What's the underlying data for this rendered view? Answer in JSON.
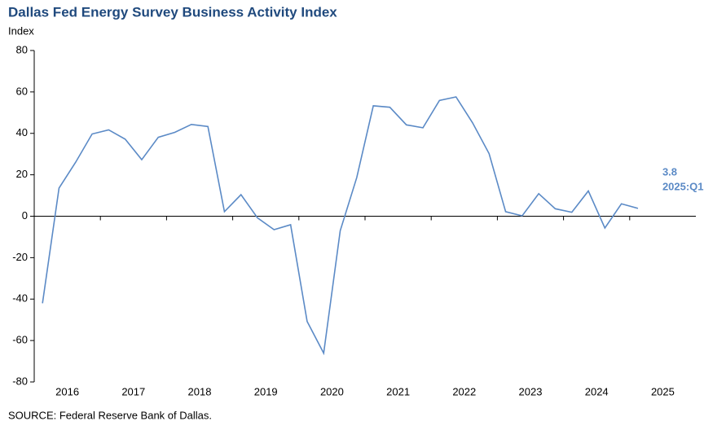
{
  "chart_data": {
    "type": "line",
    "title": "Dallas Fed Energy Survey Business Activity Index",
    "y_axis_label": "Index",
    "source": "SOURCE:  Federal Reserve  Bank of Dallas.",
    "annotation": "2025:Q1",
    "x": [
      2016,
      2016.25,
      2016.5,
      2016.75,
      2017,
      2017.25,
      2017.5,
      2017.75,
      2018,
      2018.25,
      2018.5,
      2018.75,
      2019,
      2019.25,
      2019.5,
      2019.75,
      2020,
      2020.25,
      2020.5,
      2020.75,
      2021,
      2021.25,
      2021.5,
      2021.75,
      2022,
      2022.25,
      2022.5,
      2022.75,
      2023,
      2023.25,
      2023.5,
      2023.75,
      2024,
      2024.25,
      2024.5,
      2024.75,
      2025
    ],
    "series": [
      {
        "name": "Business Activity Index",
        "color": "#5b8ac6",
        "values": [
          -42,
          13.6,
          26,
          39.7,
          41.7,
          37.2,
          27.3,
          38.1,
          40.5,
          44.3,
          43.3,
          2.2,
          10.4,
          -0.8,
          -6.5,
          -4.1,
          -50.8,
          -66.1,
          -7.0,
          18.7,
          53.3,
          52.6,
          44.1,
          42.7,
          55.9,
          57.6,
          45.1,
          30.2,
          2.2,
          0.2,
          10.9,
          3.6,
          1.9,
          12.2,
          -5.7,
          6.0,
          3.8
        ]
      }
    ],
    "xlim": [
      2016,
      2026
    ],
    "xticks": [
      2016,
      2017,
      2018,
      2019,
      2020,
      2021,
      2022,
      2023,
      2024,
      2025
    ],
    "ylim": [
      -80,
      80
    ],
    "yticks": [
      80,
      60,
      40,
      20,
      0,
      -20,
      -40,
      -60,
      -80
    ],
    "grid": false
  }
}
